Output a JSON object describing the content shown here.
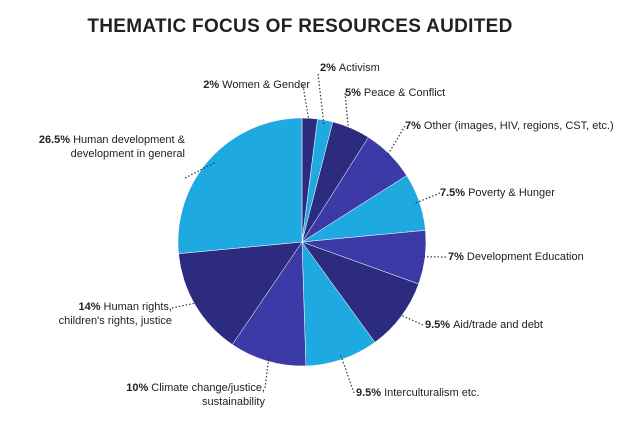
{
  "chart_data": {
    "type": "pie",
    "title": "THEMATIC FOCUS OF RESOURCES AUDITED",
    "categories": [
      "Women & Gender",
      "Activism",
      "Peace & Conflict",
      "Other (images, HIV, regions, CST, etc.)",
      "Poverty & Hunger",
      "Development Education",
      "Aid/trade and debt",
      "Interculturalism etc.",
      "Climate change/justice, sustainability",
      "Human rights, children's rights, justice",
      "Human development & development in general"
    ],
    "values": [
      2,
      2,
      5,
      7,
      7.5,
      7,
      9.5,
      9.5,
      10,
      14,
      26.5
    ],
    "value_labels": [
      "2%",
      "2%",
      "5%",
      "7%",
      "7.5%",
      "7%",
      "9.5%",
      "9.5%",
      "10%",
      "14%",
      "26.5%"
    ],
    "colors": [
      "#2c2b80",
      "#1fa9e1",
      "#2c2b80",
      "#3b3aa6",
      "#1fa9e1",
      "#3b3aa6",
      "#2c2b80",
      "#1fa9e1",
      "#3b3aa6",
      "#2c2b80",
      "#1fa9e1"
    ]
  }
}
